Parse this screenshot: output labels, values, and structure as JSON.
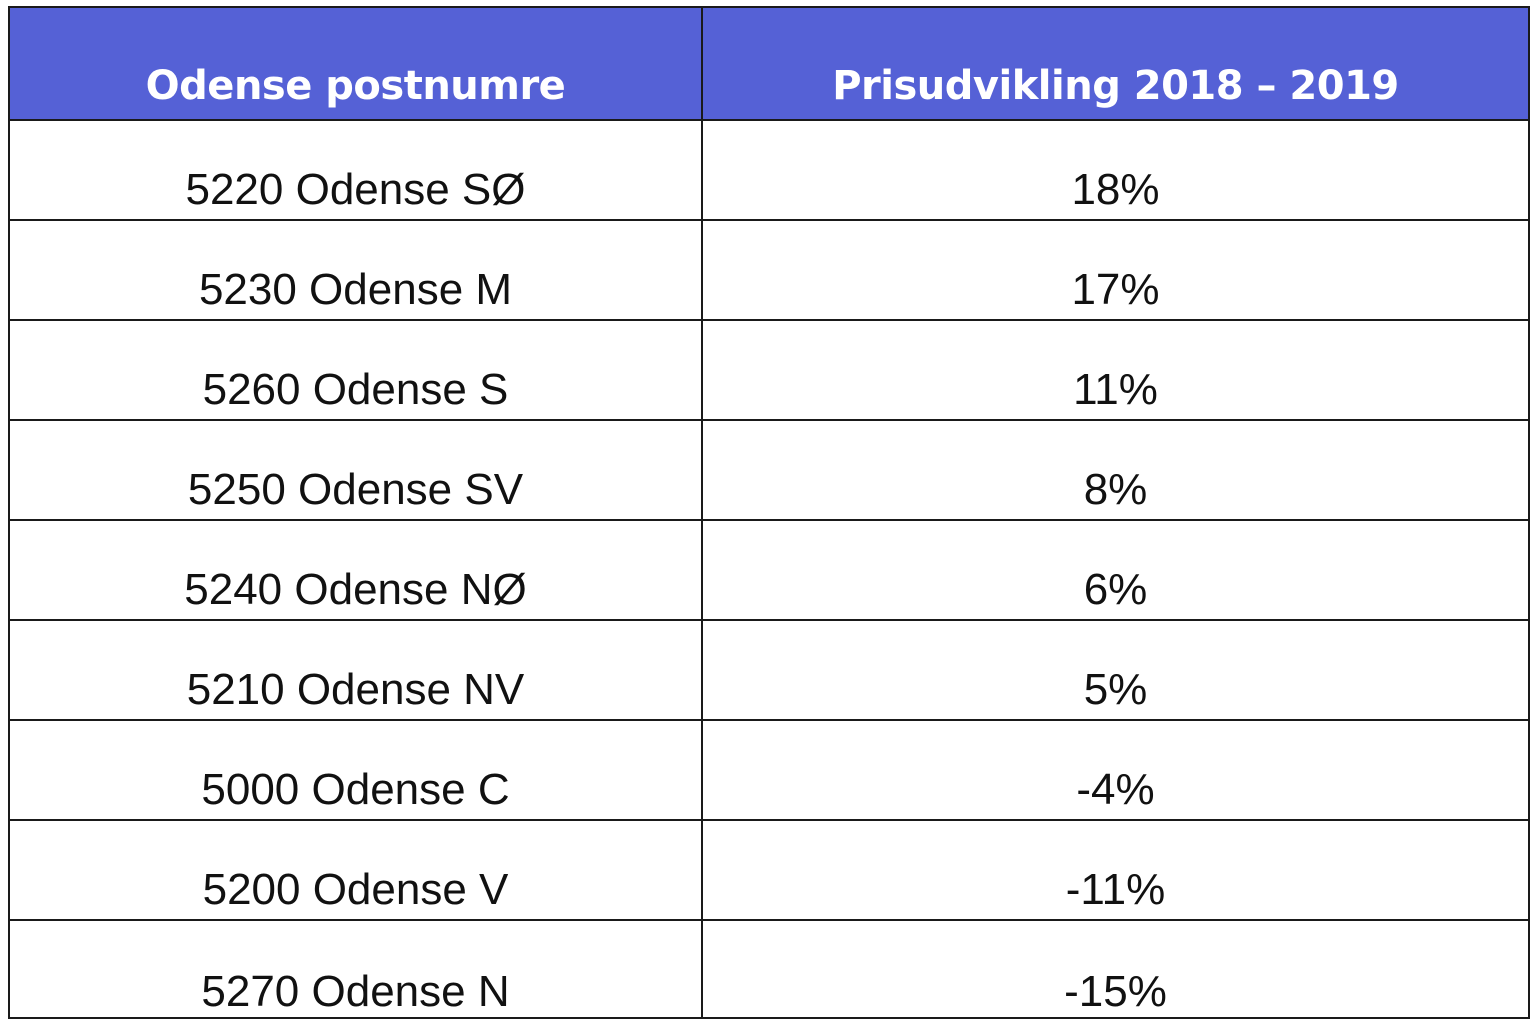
{
  "table": {
    "headers": [
      "Odense postnumre",
      "Prisudvikling 2018 – 2019"
    ],
    "rows": [
      {
        "area": "5220 Odense SØ",
        "change": "18%"
      },
      {
        "area": "5230 Odense M",
        "change": "17%"
      },
      {
        "area": "5260 Odense S",
        "change": "11%"
      },
      {
        "area": "5250 Odense SV",
        "change": "8%"
      },
      {
        "area": "5240 Odense NØ",
        "change": "6%"
      },
      {
        "area": "5210 Odense NV",
        "change": "5%"
      },
      {
        "area": "5000 Odense C",
        "change": "-4%"
      },
      {
        "area": "5200 Odense V",
        "change": "-11%"
      },
      {
        "area": "5270 Odense N",
        "change": "-15%"
      }
    ],
    "colors": {
      "header_background": "#5561d6",
      "header_text": "#ffffff",
      "border": "#1a1a1a"
    }
  }
}
